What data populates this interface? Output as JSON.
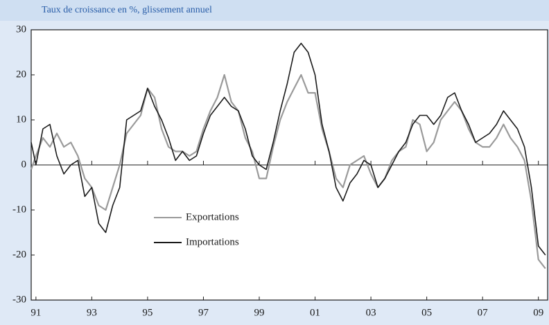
{
  "chart_data": {
    "type": "line",
    "title": "Taux de croissance en %, glissement annuel",
    "x": [
      1990.83,
      1991.0,
      1991.25,
      1991.5,
      1991.75,
      1992.0,
      1992.25,
      1992.5,
      1992.75,
      1993.0,
      1993.25,
      1993.5,
      1993.75,
      1994.0,
      1994.25,
      1994.5,
      1994.75,
      1995.0,
      1995.25,
      1995.5,
      1995.75,
      1996.0,
      1996.25,
      1996.5,
      1996.75,
      1997.0,
      1997.25,
      1997.5,
      1997.75,
      1998.0,
      1998.25,
      1998.5,
      1998.75,
      1999.0,
      1999.25,
      1999.5,
      1999.75,
      2000.0,
      2000.25,
      2000.5,
      2000.75,
      2001.0,
      2001.25,
      2001.5,
      2001.75,
      2002.0,
      2002.25,
      2002.5,
      2002.75,
      2003.0,
      2003.25,
      2003.5,
      2003.75,
      2004.0,
      2004.25,
      2004.5,
      2004.75,
      2005.0,
      2005.25,
      2005.5,
      2005.75,
      2006.0,
      2006.25,
      2006.5,
      2006.75,
      2007.0,
      2007.25,
      2007.5,
      2007.75,
      2008.0,
      2008.25,
      2008.5,
      2008.75,
      2009.0,
      2009.25
    ],
    "series": [
      {
        "name": "Exportations",
        "color": "#9a9a9a",
        "values": [
          -1,
          2,
          6,
          4,
          7,
          4,
          5,
          2,
          -3,
          -5,
          -9,
          -10,
          -5,
          0,
          7,
          9,
          11,
          17,
          15,
          8,
          4,
          3,
          3,
          2,
          3,
          8,
          12,
          15,
          20,
          14,
          12,
          6,
          3,
          -3,
          -3,
          4,
          10,
          14,
          17,
          20,
          16,
          16,
          8,
          3,
          -3,
          -5,
          0,
          1,
          2,
          -2,
          -5,
          -3,
          1,
          3,
          4,
          10,
          9,
          3,
          5,
          10,
          12,
          14,
          12,
          8,
          5,
          4,
          4,
          6,
          9,
          6,
          4,
          1,
          -8,
          -21,
          -23
        ]
      },
      {
        "name": "Importations",
        "color": "#1a1a1a",
        "values": [
          5,
          0,
          8,
          9,
          2,
          -2,
          0,
          1,
          -7,
          -5,
          -13,
          -15,
          -9,
          -5,
          10,
          11,
          12,
          17,
          13,
          10,
          6,
          1,
          3,
          1,
          2,
          7,
          11,
          13,
          15,
          13,
          12,
          8,
          2,
          0,
          -1,
          5,
          12,
          18,
          25,
          27,
          25,
          20,
          9,
          3,
          -5,
          -8,
          -4,
          -2,
          1,
          0,
          -5,
          -3,
          0,
          3,
          5,
          9,
          11,
          11,
          9,
          11,
          15,
          16,
          12,
          9,
          5,
          6,
          7,
          9,
          12,
          10,
          8,
          4,
          -5,
          -18,
          -20
        ]
      }
    ],
    "xlim": [
      1990.83,
      2009.33
    ],
    "xticks": [
      {
        "value": 1991,
        "label": "91"
      },
      {
        "value": 1993,
        "label": "93"
      },
      {
        "value": 1995,
        "label": "95"
      },
      {
        "value": 1997,
        "label": "97"
      },
      {
        "value": 1999,
        "label": "99"
      },
      {
        "value": 2001,
        "label": "01"
      },
      {
        "value": 2003,
        "label": "03"
      },
      {
        "value": 2005,
        "label": "05"
      },
      {
        "value": 2007,
        "label": "07"
      },
      {
        "value": 2009,
        "label": "09"
      }
    ],
    "ylim": [
      -30,
      30
    ],
    "yticks": [
      -30,
      -20,
      -10,
      0,
      10,
      20,
      30
    ]
  }
}
